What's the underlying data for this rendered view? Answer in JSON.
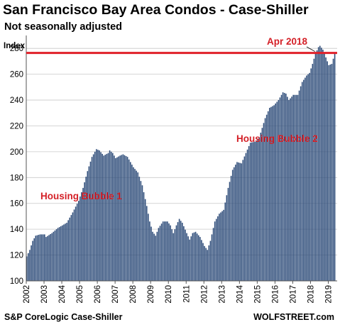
{
  "title": "San Francisco Bay Area Condos - Case-Shiller",
  "subtitle": "Not seasonally adjusted",
  "source": "S&P CoreLogic Case-Shiller",
  "brand": "WOLFSTREET.com",
  "colors": {
    "bar": "#2f4d7a",
    "reference_line": "#e0212a",
    "annotation": "#d42027",
    "grid": "#c8c8c8"
  },
  "chart_data": {
    "type": "bar",
    "ylabel": "Index",
    "ylim": [
      100,
      290
    ],
    "yticks": [
      100,
      120,
      140,
      160,
      180,
      200,
      220,
      240,
      260,
      280
    ],
    "xlim": [
      2002,
      2019.5
    ],
    "xticks": [
      "2002",
      "2003",
      "2004",
      "2005",
      "2006",
      "2007",
      "2008",
      "2009",
      "2010",
      "2011",
      "2012",
      "2013",
      "2014",
      "2015",
      "2016",
      "2017",
      "2018",
      "2019"
    ],
    "frequency": "monthly",
    "start": "2002-01",
    "grid": true,
    "reference_line": {
      "value": 276.5,
      "label": "Apr 2018"
    },
    "annotations": [
      {
        "text": "Housing Bubble 1"
      },
      {
        "text": "Housing Bubble 2"
      }
    ],
    "keypoints": [
      [
        "2002-01",
        119
      ],
      [
        "2002-03",
        124
      ],
      [
        "2002-05",
        131
      ],
      [
        "2002-07",
        135
      ],
      [
        "2002-10",
        136
      ],
      [
        "2003-01",
        136
      ],
      [
        "2003-02",
        134
      ],
      [
        "2003-06",
        137
      ],
      [
        "2003-10",
        141
      ],
      [
        "2004-01",
        143
      ],
      [
        "2004-04",
        145
      ],
      [
        "2004-08",
        153
      ],
      [
        "2004-12",
        162
      ],
      [
        "2005-03",
        172
      ],
      [
        "2005-06",
        185
      ],
      [
        "2005-09",
        196
      ],
      [
        "2005-12",
        202
      ],
      [
        "2006-02",
        201
      ],
      [
        "2006-05",
        197
      ],
      [
        "2006-08",
        199
      ],
      [
        "2006-09",
        201
      ],
      [
        "2006-11",
        199
      ],
      [
        "2007-01",
        195
      ],
      [
        "2007-04",
        197
      ],
      [
        "2007-06",
        198
      ],
      [
        "2007-09",
        196
      ],
      [
        "2007-11",
        192
      ],
      [
        "2008-01",
        188
      ],
      [
        "2008-04",
        184
      ],
      [
        "2008-07",
        174
      ],
      [
        "2008-10",
        158
      ],
      [
        "2008-12",
        146
      ],
      [
        "2009-02",
        138
      ],
      [
        "2009-04",
        135
      ],
      [
        "2009-06",
        141
      ],
      [
        "2009-09",
        146
      ],
      [
        "2009-12",
        146
      ],
      [
        "2010-02",
        143
      ],
      [
        "2010-04",
        137
      ],
      [
        "2010-06",
        143
      ],
      [
        "2010-08",
        148
      ],
      [
        "2010-10",
        145
      ],
      [
        "2011-01",
        137
      ],
      [
        "2011-03",
        132
      ],
      [
        "2011-05",
        137
      ],
      [
        "2011-07",
        138
      ],
      [
        "2011-10",
        134
      ],
      [
        "2012-01",
        127
      ],
      [
        "2012-03",
        124
      ],
      [
        "2012-05",
        131
      ],
      [
        "2012-08",
        146
      ],
      [
        "2012-11",
        152
      ],
      [
        "2013-02",
        155
      ],
      [
        "2013-05",
        172
      ],
      [
        "2013-08",
        186
      ],
      [
        "2013-11",
        192
      ],
      [
        "2014-02",
        191
      ],
      [
        "2014-05",
        199
      ],
      [
        "2014-08",
        207
      ],
      [
        "2014-12",
        208
      ],
      [
        "2015-02",
        211
      ],
      [
        "2015-06",
        226
      ],
      [
        "2015-09",
        234
      ],
      [
        "2015-12",
        236
      ],
      [
        "2016-03",
        240
      ],
      [
        "2016-06",
        246
      ],
      [
        "2016-08",
        245
      ],
      [
        "2016-10",
        240
      ],
      [
        "2017-01",
        244
      ],
      [
        "2017-04",
        244
      ],
      [
        "2017-07",
        254
      ],
      [
        "2017-10",
        259
      ],
      [
        "2017-12",
        261
      ],
      [
        "2018-02",
        268
      ],
      [
        "2018-04",
        276
      ],
      [
        "2018-06",
        281
      ],
      [
        "2018-07",
        282
      ],
      [
        "2018-09",
        279
      ],
      [
        "2018-11",
        273
      ],
      [
        "2019-01",
        267
      ],
      [
        "2019-03",
        268
      ],
      [
        "2019-05",
        276
      ]
    ]
  }
}
